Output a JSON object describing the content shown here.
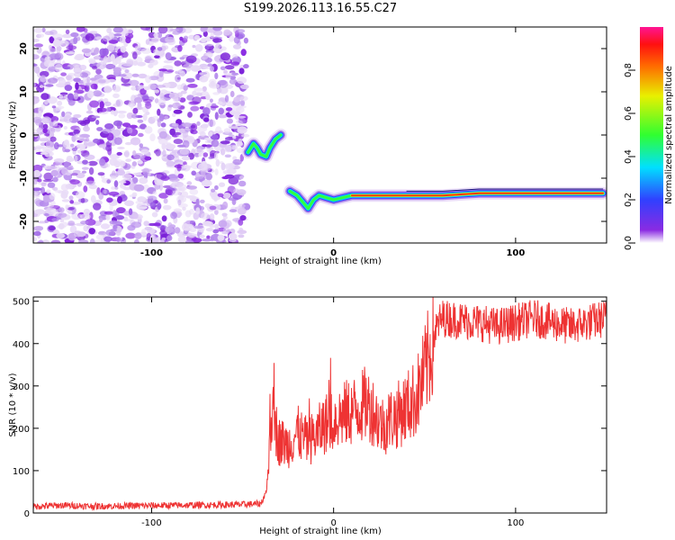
{
  "title": "S199.2026.113.16.55.C27",
  "chart_data": [
    {
      "type": "heatmap",
      "name": "spectrogram",
      "xlabel": "Height of straight line (km)",
      "ylabel": "Frequency (Hz)",
      "xlim": [
        -165,
        150
      ],
      "ylim": [
        -25,
        25
      ],
      "xticks": [
        -100,
        0,
        100
      ],
      "yticks": [
        -20,
        -10,
        0,
        10,
        20
      ],
      "xtick_labels": [
        "-100",
        "0",
        "100"
      ],
      "ytick_labels": [
        "-20",
        "-10",
        "0",
        "10",
        "20"
      ],
      "noise_region": {
        "x": [
          -165,
          -48
        ],
        "y": [
          -25,
          25
        ]
      },
      "signal_track": [
        {
          "x": -47,
          "y": -4
        },
        {
          "x": -44,
          "y": -2
        },
        {
          "x": -42,
          "y": -3
        },
        {
          "x": -40,
          "y": -4.5
        },
        {
          "x": -37,
          "y": -5
        },
        {
          "x": -35,
          "y": -3
        },
        {
          "x": -32,
          "y": -1
        },
        {
          "x": -29,
          "y": 0
        },
        {
          "x": -24,
          "y": -13
        },
        {
          "x": -20,
          "y": -14
        },
        {
          "x": -17,
          "y": -15.5
        },
        {
          "x": -14,
          "y": -17
        },
        {
          "x": -11,
          "y": -15
        },
        {
          "x": -8,
          "y": -14
        },
        {
          "x": -4,
          "y": -14.5
        },
        {
          "x": 0,
          "y": -15
        },
        {
          "x": 5,
          "y": -14.5
        },
        {
          "x": 10,
          "y": -14
        },
        {
          "x": 20,
          "y": -14
        },
        {
          "x": 40,
          "y": -14
        },
        {
          "x": 60,
          "y": -14
        },
        {
          "x": 80,
          "y": -13.5
        },
        {
          "x": 100,
          "y": -13.5
        },
        {
          "x": 120,
          "y": -13.5
        },
        {
          "x": 148,
          "y": -13.5
        }
      ],
      "colorbar": {
        "label": "Normalized spectral amplitude",
        "range": [
          0,
          1
        ],
        "ticks": [
          0.0,
          0.2,
          0.4,
          0.6,
          0.8
        ],
        "tick_labels": [
          "0.0",
          "0.2",
          "0.4",
          "0.6",
          "0.8"
        ]
      }
    },
    {
      "type": "line",
      "name": "snr",
      "xlabel": "Height of straight line (km)",
      "ylabel": "SNR (10 * v/v)",
      "xlim": [
        -165,
        150
      ],
      "ylim": [
        0,
        510
      ],
      "xticks": [
        -100,
        0,
        100
      ],
      "yticks": [
        0,
        100,
        200,
        300,
        400,
        500
      ],
      "xtick_labels": [
        "-100",
        "0",
        "100"
      ],
      "ytick_labels": [
        "0",
        "100",
        "200",
        "300",
        "400",
        "500"
      ],
      "series": [
        {
          "name": "SNR",
          "color": "#ee3333",
          "x": [
            -165,
            -150,
            -130,
            -110,
            -90,
            -70,
            -50,
            -40,
            -37,
            -35,
            -34,
            -30,
            -25,
            -20,
            -15,
            -10,
            -5,
            0,
            5,
            10,
            15,
            18,
            22,
            25,
            28,
            30,
            35,
            40,
            45,
            48,
            52,
            55,
            58,
            60,
            70,
            80,
            90,
            100,
            110,
            120,
            130,
            140,
            150
          ],
          "y": [
            15,
            18,
            16,
            17,
            18,
            19,
            20,
            22,
            50,
            150,
            240,
            170,
            160,
            190,
            170,
            180,
            210,
            220,
            230,
            240,
            250,
            260,
            240,
            215,
            205,
            220,
            230,
            250,
            270,
            300,
            360,
            420,
            450,
            460,
            455,
            450,
            440,
            450,
            460,
            450,
            440,
            450,
            460
          ]
        }
      ]
    }
  ],
  "colors": {
    "snr_line": "#ee3333",
    "noise_hue": "#8a2be2"
  }
}
